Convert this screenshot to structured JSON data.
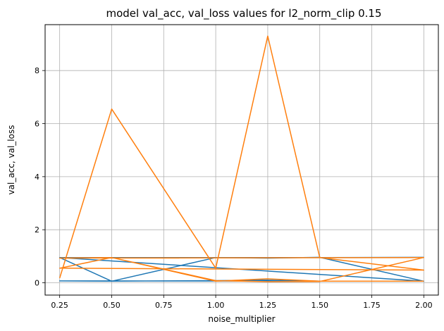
{
  "chart_data": {
    "type": "line",
    "title": "model val_acc, val_loss values for l2_norm_clip 0.15",
    "xlabel": "noise_multiplier",
    "ylabel": "val_acc, val_loss",
    "xlim": [
      0.18,
      2.07
    ],
    "ylim": [
      -0.4636,
      9.73
    ],
    "xticks": [
      "0.25",
      "0.50",
      "0.75",
      "1.00",
      "1.25",
      "1.50",
      "1.75",
      "2.00"
    ],
    "yticks": [
      "0",
      "2",
      "4",
      "6",
      "8"
    ],
    "grid": true,
    "colors": {
      "acc": "#1f77b4",
      "loss": "#ff7f0e"
    },
    "series": [
      {
        "values_x": [
          0.25,
          0.5,
          1.0,
          1.25,
          1.5,
          2.0,
          0.25,
          0.5,
          1.0,
          1.25,
          1.5,
          2.0,
          0.25,
          0.5,
          1.0,
          1.25,
          1.5,
          2.0
        ],
        "values_y": [
          0.95,
          0.06,
          0.95,
          0.93,
          0.96,
          0.06,
          0.07,
          0.06,
          0.08,
          0.1,
          0.06,
          0.06,
          0.95,
          0.95,
          0.95,
          0.95,
          0.95,
          0.96
        ],
        "color_key": "acc"
      },
      {
        "values_x": [
          0.25,
          0.5,
          1.0,
          1.25,
          1.5,
          2.0,
          0.25,
          0.5,
          1.0,
          1.25,
          1.5,
          2.0,
          0.25,
          0.5,
          1.0,
          1.25,
          1.5,
          2.0
        ],
        "values_y": [
          0.18,
          6.55,
          0.55,
          9.3,
          0.95,
          0.48,
          0.55,
          0.95,
          0.08,
          0.04,
          0.05,
          0.95,
          0.93,
          0.95,
          0.06,
          0.15,
          0.06,
          0.06
        ],
        "color_key": "loss"
      }
    ]
  }
}
